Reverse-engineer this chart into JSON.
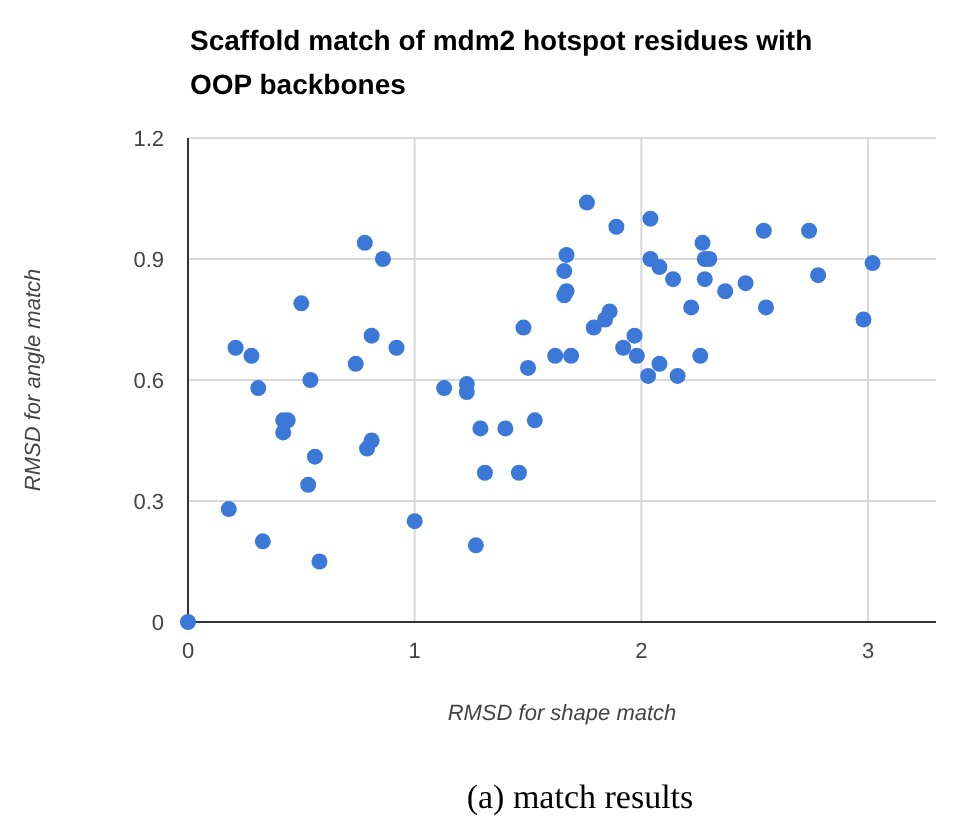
{
  "chart_data": {
    "type": "scatter",
    "title": "Scaffold match of mdm2 hotspot residues with OOP backbones",
    "xlabel": "RMSD for shape match",
    "ylabel": "RMSD for angle match",
    "annotations": [
      "(a) match results"
    ],
    "x": [
      0,
      0.18,
      0.33,
      0.21,
      0.28,
      0.31,
      0.42,
      0.44,
      0.42,
      0.5,
      0.56,
      0.53,
      0.54,
      0.58,
      0.74,
      0.78,
      0.86,
      0.81,
      0.92,
      0.79,
      0.81,
      1.0,
      1.13,
      1.23,
      1.23,
      1.29,
      1.4,
      1.53,
      1.31,
      1.46,
      1.27,
      1.48,
      1.5,
      1.62,
      1.67,
      1.66,
      1.66,
      1.67,
      1.76,
      1.89,
      2.04,
      1.69,
      1.79,
      1.84,
      1.86,
      1.92,
      1.97,
      1.98,
      2.03,
      2.08,
      2.16,
      2.04,
      2.08,
      2.14,
      2.22,
      2.26,
      2.27,
      2.28,
      2.3,
      2.28,
      2.37,
      2.46,
      2.54,
      2.55,
      2.74,
      2.78,
      2.98,
      3.02
    ],
    "values": [
      0,
      0.28,
      0.2,
      0.68,
      0.66,
      0.58,
      0.5,
      0.5,
      0.47,
      0.79,
      0.41,
      0.34,
      0.6,
      0.15,
      0.64,
      0.94,
      0.9,
      0.71,
      0.68,
      0.43,
      0.45,
      0.25,
      0.58,
      0.59,
      0.57,
      0.48,
      0.48,
      0.5,
      0.37,
      0.37,
      0.19,
      0.73,
      0.63,
      0.66,
      0.91,
      0.87,
      0.81,
      0.82,
      1.04,
      0.98,
      1.0,
      0.66,
      0.73,
      0.75,
      0.77,
      0.68,
      0.71,
      0.66,
      0.61,
      0.64,
      0.61,
      0.9,
      0.88,
      0.85,
      0.78,
      0.66,
      0.94,
      0.9,
      0.9,
      0.85,
      0.82,
      0.84,
      0.97,
      0.78,
      0.97,
      0.86,
      0.75,
      0.89
    ],
    "color": "#3b78d8",
    "marker": "circle",
    "grid": true,
    "xlim": [
      0,
      3.3
    ],
    "xticks": [
      0,
      1,
      2,
      3
    ],
    "ylim": [
      0,
      1.2
    ],
    "yticks": [
      0,
      {
        "value": 0.3,
        "label": "0.3"
      },
      {
        "value": 0.6,
        "label": "0.6"
      },
      {
        "value": 0.9,
        "label": "0.9"
      },
      {
        "value": 1.2,
        "label": "1.2"
      }
    ]
  }
}
